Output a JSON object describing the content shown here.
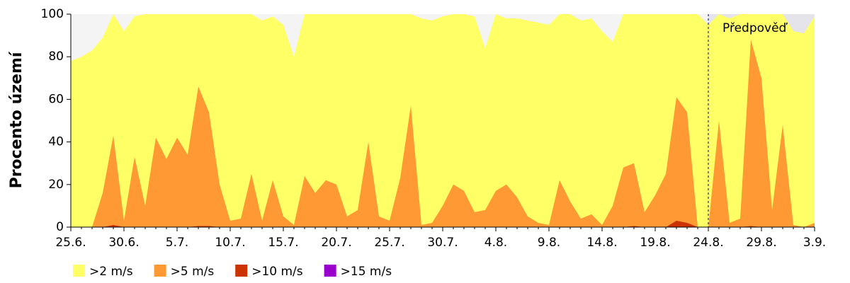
{
  "chart_data": {
    "type": "area",
    "y_label": "Procento území",
    "annotation": "Předpověď",
    "categories": [
      "25.6.",
      null,
      null,
      null,
      null,
      "30.6.",
      null,
      null,
      null,
      null,
      "5.7.",
      null,
      null,
      null,
      null,
      "10.7.",
      null,
      null,
      null,
      null,
      "15.7.",
      null,
      null,
      null,
      null,
      "20.7.",
      null,
      null,
      null,
      null,
      "25.7.",
      null,
      null,
      null,
      null,
      "30.7.",
      null,
      null,
      null,
      null,
      "4.8.",
      null,
      null,
      null,
      null,
      "9.8.",
      null,
      null,
      null,
      null,
      "14.8.",
      null,
      null,
      null,
      null,
      "19.8.",
      null,
      null,
      null,
      null,
      "24.8.",
      null,
      null,
      null,
      null,
      "29.8.",
      null,
      null,
      null,
      null,
      "3.9."
    ],
    "series": [
      {
        "name": ">2 m/s",
        "color": "#ffff66",
        "values": [
          78,
          80,
          83,
          89,
          100,
          92,
          99,
          100,
          100,
          100,
          100,
          100,
          100,
          100,
          100,
          100,
          100,
          100,
          97,
          99,
          95,
          80,
          100,
          100,
          100,
          100,
          100,
          100,
          100,
          100,
          100,
          100,
          100,
          98,
          97,
          99,
          100,
          100,
          99,
          84,
          100,
          98,
          98,
          97,
          96,
          95,
          100,
          100,
          97,
          98,
          92,
          87,
          100,
          100,
          100,
          100,
          100,
          100,
          100,
          100,
          95,
          100,
          98,
          100,
          100,
          100,
          100,
          100,
          92,
          91,
          99
        ]
      },
      {
        "name": ">5 m/s",
        "color": "#ff9933",
        "values": [
          0,
          0,
          0,
          16,
          43,
          3,
          33,
          10,
          42,
          32,
          42,
          34,
          66,
          54,
          20,
          3,
          4,
          25,
          3,
          22,
          5,
          1,
          24,
          16,
          22,
          20,
          5,
          8,
          40,
          5,
          3,
          23,
          57,
          1,
          2,
          10,
          20,
          17,
          7,
          8,
          17,
          20,
          14,
          5,
          2,
          1,
          22,
          12,
          4,
          6,
          1,
          10,
          28,
          30,
          7,
          15,
          25,
          61,
          54,
          0,
          0,
          50,
          2,
          4,
          88,
          70,
          8,
          48,
          1,
          0,
          2
        ]
      },
      {
        "name": ">10 m/s",
        "color": "#cc3300",
        "values": [
          0,
          0,
          0,
          0,
          1,
          0,
          0,
          0,
          0,
          0,
          0,
          0,
          0.5,
          0.5,
          0,
          0,
          0,
          0,
          0,
          0,
          0,
          0,
          0,
          0,
          0,
          0,
          0,
          0,
          0,
          0,
          0,
          0,
          0,
          0,
          0,
          0,
          0,
          0,
          0,
          0,
          0,
          0,
          0,
          0,
          0,
          0,
          0,
          0,
          0,
          0,
          0,
          0,
          0,
          0.5,
          0,
          0,
          0,
          3,
          2,
          0,
          0,
          0,
          0,
          0,
          0.5,
          0,
          0,
          0,
          0,
          0,
          0
        ]
      },
      {
        "name": ">15 m/s",
        "color": "#9900cc",
        "values": [
          0,
          0,
          0,
          0,
          0,
          0,
          0,
          0,
          0,
          0,
          0,
          0,
          0,
          0,
          0,
          0,
          0,
          0,
          0,
          0,
          0,
          0,
          0,
          0,
          0,
          0,
          0,
          0,
          0,
          0,
          0,
          0,
          0,
          0,
          0,
          0,
          0,
          0,
          0,
          0,
          0,
          0,
          0,
          0,
          0,
          0,
          0,
          0,
          0,
          0,
          0,
          0,
          0,
          0,
          0,
          0,
          0,
          0,
          0,
          0,
          0,
          0,
          0,
          0,
          0,
          0,
          0,
          0,
          0,
          0,
          0
        ]
      }
    ],
    "ylim": [
      0,
      100
    ],
    "yticks": [
      0,
      20,
      40,
      60,
      80,
      100
    ]
  }
}
